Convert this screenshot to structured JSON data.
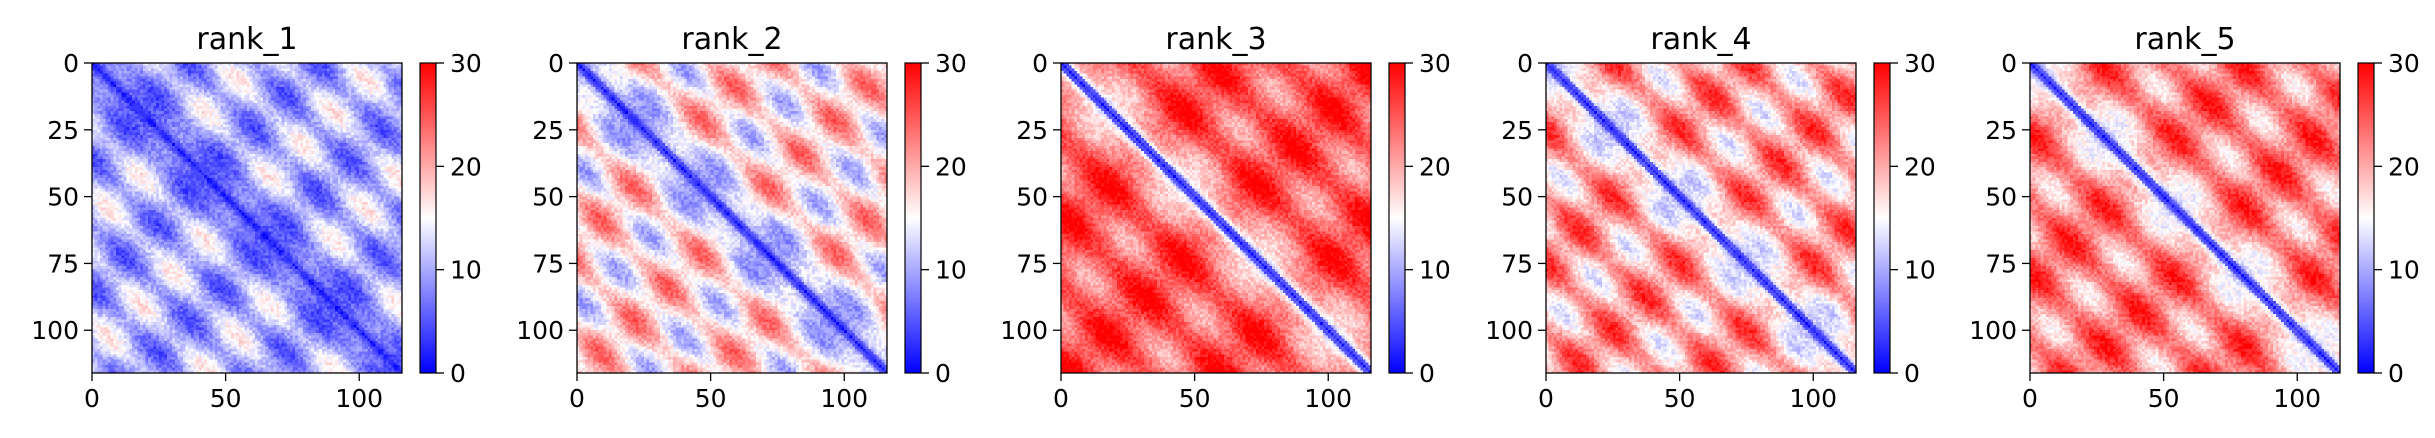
{
  "chart_data": {
    "type": "heatmap",
    "description_colormap": "bwr",
    "colormap": {
      "low": "#0000ff",
      "mid": "#ffffff",
      "high": "#ff0000"
    },
    "value_range": [
      0,
      30
    ],
    "matrix_size": 116,
    "x_ticks": [
      0,
      50,
      100
    ],
    "y_ticks": [
      0,
      25,
      50,
      75,
      100
    ],
    "colorbar_ticks": [
      0,
      10,
      20,
      30
    ],
    "xlim": [
      0,
      116
    ],
    "ylim": [
      116,
      0
    ],
    "grid": false,
    "panels": [
      {
        "title": "rank_1",
        "diag_width": 6.5,
        "base": 13,
        "amp": 6.5,
        "bias": -2.5,
        "period": 24,
        "seed": 11
      },
      {
        "title": "rank_2",
        "diag_width": 6.0,
        "base": 16,
        "amp": 8.0,
        "bias": 1.0,
        "period": 25,
        "seed": 23
      },
      {
        "title": "rank_3",
        "diag_width": 5.0,
        "base": 20,
        "amp": 6.0,
        "bias": 5.0,
        "period": 28,
        "seed": 37
      },
      {
        "title": "rank_4",
        "diag_width": 5.0,
        "base": 18,
        "amp": 8.0,
        "bias": 2.5,
        "period": 25,
        "seed": 41
      },
      {
        "title": "rank_5",
        "diag_width": 5.0,
        "base": 19,
        "amp": 7.0,
        "bias": 3.5,
        "period": 26,
        "seed": 53
      }
    ]
  }
}
